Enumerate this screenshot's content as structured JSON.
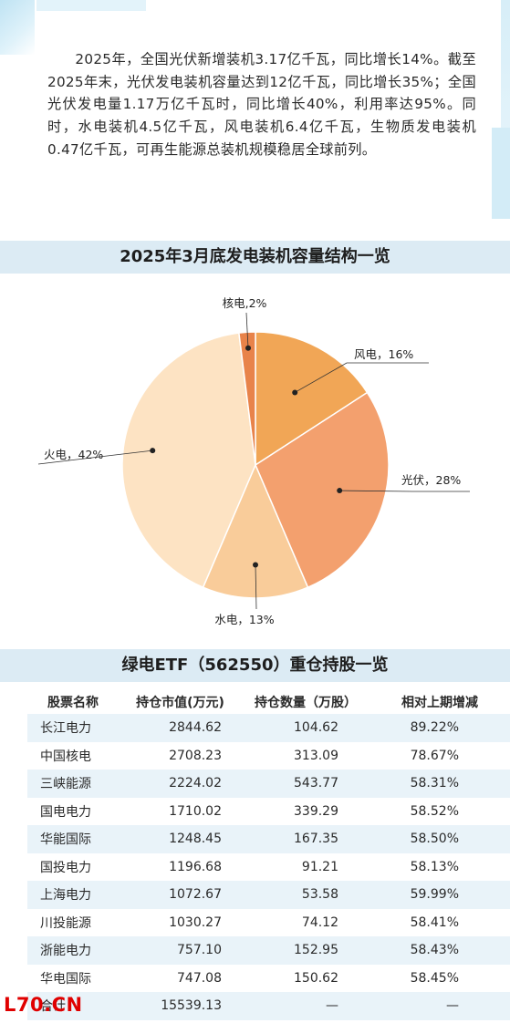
{
  "intro": {
    "paragraph": "2025年，全国光伏新增装机3.17亿千瓦，同比增长14%。截至2025年末，光伏发电装机容量达到12亿千瓦，同比增长35%；全国光伏发电量1.17万亿千瓦时，同比增长40%，利用率达95%。同时，水电装机4.5亿千瓦，风电装机6.4亿千瓦，生物质发电装机0.47亿千瓦，可再生能源总装机规模稳居全球前列。"
  },
  "pie_section": {
    "title": "2025年3月底发电装机容量结构一览"
  },
  "chart_data": {
    "type": "pie",
    "title": "2025年3月底发电装机容量结构一览",
    "slices": [
      {
        "name": "风电",
        "label": "风电，16%",
        "value": 16,
        "color": "#f1a656"
      },
      {
        "name": "光伏",
        "label": "光伏，28%",
        "value": 28,
        "color": "#f3a06e"
      },
      {
        "name": "水电",
        "label": "水电，13%",
        "value": 13,
        "color": "#f9cc9a"
      },
      {
        "name": "火电",
        "label": "火电，42%",
        "value": 42,
        "color": "#fde3c3"
      },
      {
        "name": "核电",
        "label": "核电,2%",
        "value": 2,
        "color": "#e8834a"
      }
    ]
  },
  "table_section": {
    "title": "绿电ETF（562550）重仓持股一览",
    "headers": [
      "股票名称",
      "持仓市值(万元)",
      "持仓数量（万股）",
      "相对上期增减"
    ],
    "rows": [
      {
        "name": "长江电力",
        "value": "2844.62",
        "qty": "104.62",
        "change": "89.22%"
      },
      {
        "name": "中国核电",
        "value": "2708.23",
        "qty": "313.09",
        "change": "78.67%"
      },
      {
        "name": "三峡能源",
        "value": "2224.02",
        "qty": "543.77",
        "change": "58.31%"
      },
      {
        "name": "国电电力",
        "value": "1710.02",
        "qty": "339.29",
        "change": "58.52%"
      },
      {
        "name": "华能国际",
        "value": "1248.45",
        "qty": "167.35",
        "change": "58.50%"
      },
      {
        "name": "国投电力",
        "value": "1196.68",
        "qty": "91.21",
        "change": "58.13%"
      },
      {
        "name": "上海电力",
        "value": "1072.67",
        "qty": "53.58",
        "change": "59.99%"
      },
      {
        "name": "川投能源",
        "value": "1030.27",
        "qty": "74.12",
        "change": "58.41%"
      },
      {
        "name": "浙能电力",
        "value": "757.10",
        "qty": "152.95",
        "change": "58.43%"
      },
      {
        "name": "华电国际",
        "value": "747.08",
        "qty": "150.62",
        "change": "58.45%"
      }
    ],
    "total": {
      "name": "合计",
      "value": "15539.13",
      "qty": "—",
      "change": "—"
    }
  },
  "watermark": {
    "text": "L70.CN",
    "color": "#e00000"
  }
}
